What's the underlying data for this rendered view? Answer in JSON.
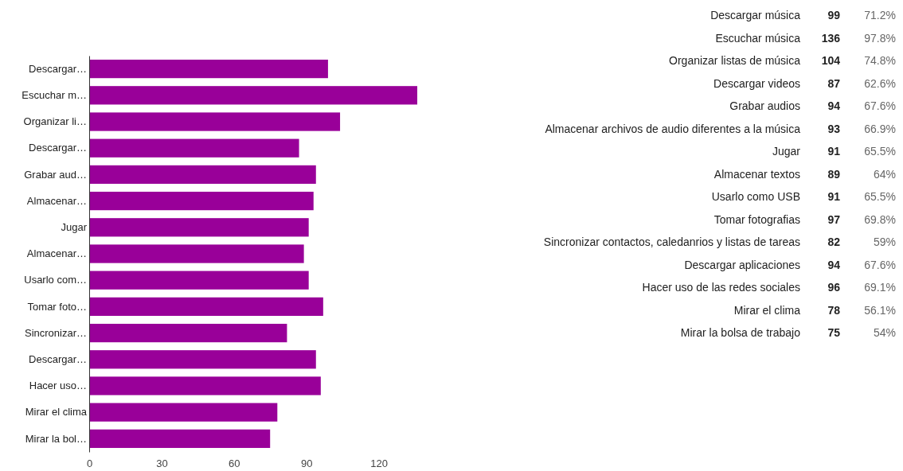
{
  "chart_data": [
    {
      "type": "bar",
      "orientation": "horizontal",
      "categories": [
        "Descargar…",
        "Escuchar m…",
        "Organizar li…",
        "Descargar…",
        "Grabar aud…",
        "Almacenar…",
        "Jugar",
        "Almacenar…",
        "Usarlo com…",
        "Tomar foto…",
        "Sincronizar…",
        "Descargar…",
        "Hacer uso…",
        "Mirar el clima",
        "Mirar la bol…"
      ],
      "values": [
        99,
        136,
        104,
        87,
        94,
        93,
        91,
        89,
        91,
        97,
        82,
        94,
        96,
        78,
        75
      ],
      "color": "#990099",
      "xlim": [
        0,
        136
      ],
      "xticks": [
        0,
        30,
        60,
        90,
        120
      ]
    },
    {
      "type": "other",
      "categories": [
        "Descargar música",
        "Escuchar música",
        "Organizar listas de música",
        "Descargar videos",
        "Grabar audios",
        "Almacenar archivos de audio diferentes a la música",
        "Jugar",
        "Almacenar textos",
        "Usarlo como USB",
        "Tomar fotografias",
        "Sincronizar contactos, caledanrios y listas de tareas",
        "Descargar aplicaciones",
        "Hacer uso de las redes sociales",
        "Mirar el clima",
        "Mirar la bolsa de trabajo"
      ],
      "series": [
        {
          "values": [
            99,
            136,
            104,
            87,
            94,
            93,
            91,
            89,
            91,
            97,
            82,
            94,
            96,
            78,
            75
          ]
        }
      ],
      "annotations": [
        "71.2%",
        "97.8%",
        "74.8%",
        "62.6%",
        "67.6%",
        "66.9%",
        "65.5%",
        "64%",
        "65.5%",
        "69.8%",
        "59%",
        "67.6%",
        "69.1%",
        "56.1%",
        "54%"
      ],
      "data_labels": true
    }
  ]
}
